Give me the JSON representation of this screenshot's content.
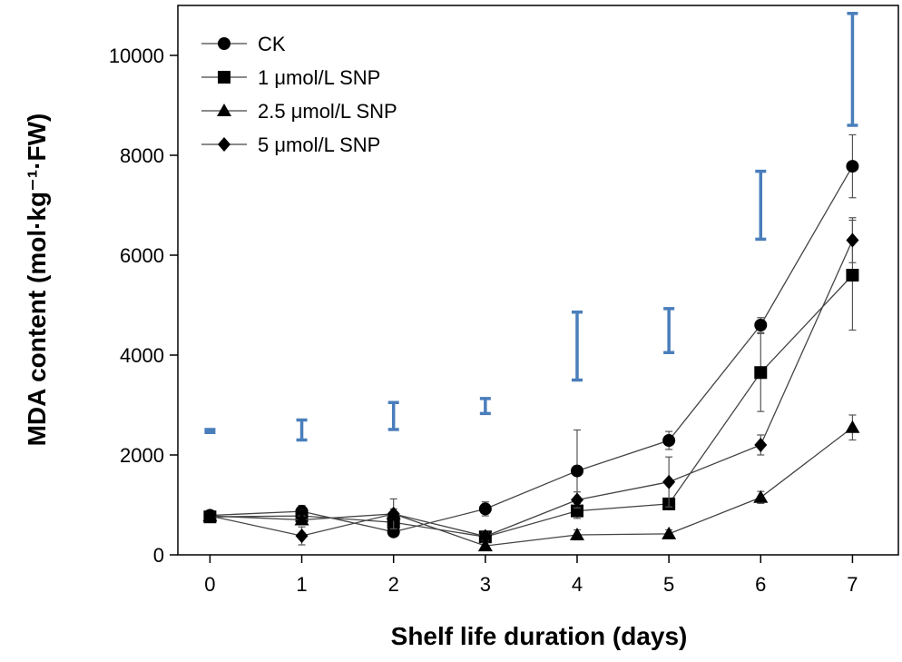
{
  "chart_data": {
    "type": "line",
    "title": "",
    "xlabel": "Shelf life duration (days)",
    "ylabel": "MDA content (mol·kg⁻¹·FW)",
    "x": [
      0,
      1,
      2,
      3,
      4,
      5,
      6,
      7
    ],
    "x_tick_labels": [
      "0",
      "1",
      "2",
      "3",
      "4",
      "5",
      "6",
      "7"
    ],
    "y_ticks": [
      0,
      2000,
      4000,
      6000,
      8000,
      10000
    ],
    "y_tick_labels": [
      "0",
      "2000",
      "4000",
      "6000",
      "8000",
      "10000"
    ],
    "xlim": [
      -0.35,
      7.5
    ],
    "ylim": [
      0,
      11000
    ],
    "legend_position": "top-left",
    "series": [
      {
        "name": "CK",
        "marker": "circle",
        "values": [
          790,
          870,
          460,
          920,
          1680,
          2290,
          4600,
          7780
        ],
        "errors": [
          60,
          120,
          60,
          140,
          820,
          180,
          150,
          630
        ]
      },
      {
        "name": "1 μmol/L SNP",
        "marker": "square",
        "values": [
          760,
          780,
          650,
          360,
          880,
          1020,
          3650,
          5600
        ],
        "errors": [
          60,
          120,
          80,
          80,
          150,
          90,
          780,
          1100
        ]
      },
      {
        "name": "2.5 μmol/L SNP",
        "marker": "triangle",
        "values": [
          780,
          700,
          820,
          180,
          400,
          420,
          1150,
          2550
        ],
        "errors": [
          60,
          80,
          100,
          60,
          100,
          80,
          120,
          250
        ]
      },
      {
        "name": "5 μmol/L SNP",
        "marker": "diamond",
        "values": [
          780,
          380,
          820,
          370,
          1100,
          1460,
          2200,
          6300
        ],
        "errors": [
          60,
          180,
          300,
          80,
          160,
          500,
          200,
          450
        ]
      }
    ],
    "lsd_bars": {
      "color": "#4a7ebb",
      "centers": [
        2480,
        2500,
        2780,
        2980,
        4180,
        4490,
        7000,
        9720
      ],
      "half_ranges": [
        30,
        200,
        270,
        150,
        680,
        440,
        680,
        1120
      ]
    }
  }
}
